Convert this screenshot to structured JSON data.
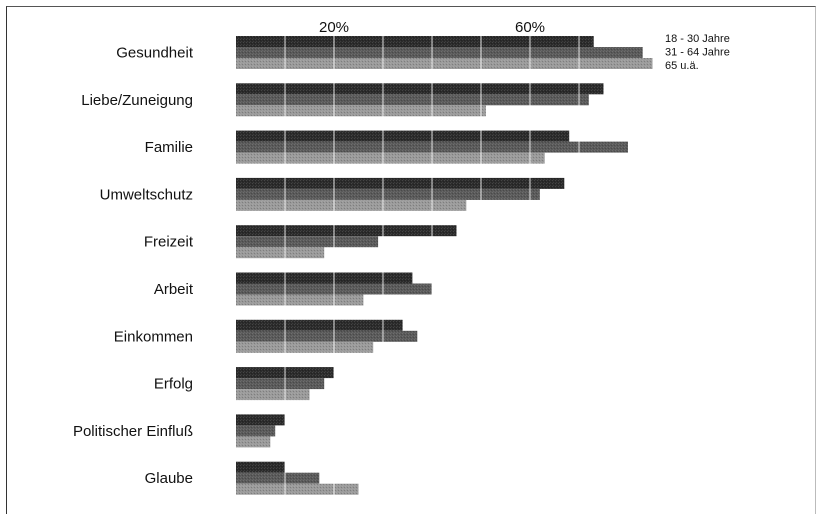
{
  "chart_data": {
    "type": "bar",
    "orientation": "horizontal",
    "categories": [
      "Gesundheit",
      "Liebe/Zuneigung",
      "Familie",
      "Umweltschutz",
      "Freizeit",
      "Arbeit",
      "Einkommen",
      "Erfolg",
      "Politischer Einfluß",
      "Glaube"
    ],
    "x_ticks": [
      {
        "value": 20,
        "label": "20%"
      },
      {
        "value": 60,
        "label": "60%"
      }
    ],
    "xlim": [
      0,
      86
    ],
    "grid_values": [
      10,
      20,
      30,
      40,
      50,
      60,
      70
    ],
    "grid": true,
    "legend_position": "top-right",
    "series": [
      {
        "name": "18 - 30 Jahre",
        "color": "#2b2b2b",
        "values": [
          73,
          75,
          68,
          67,
          45,
          36,
          34,
          20,
          10,
          10
        ]
      },
      {
        "name": "31 - 64 Jahre",
        "color": "#5a5a5a",
        "values": [
          83,
          72,
          80,
          62,
          29,
          40,
          37,
          18,
          8,
          17
        ]
      },
      {
        "name": "65 u.ä.",
        "color": "#9a9a9a",
        "values": [
          85,
          51,
          63,
          47,
          18,
          26,
          28,
          15,
          7,
          25
        ]
      }
    ]
  }
}
